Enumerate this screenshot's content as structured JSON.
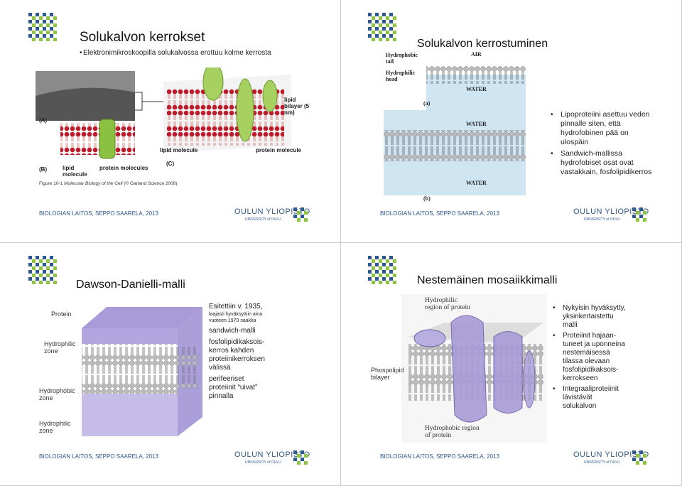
{
  "slides": [
    {
      "title": "Solukalvon kerrokset",
      "bullets": [
        "Elektronimikroskoopilla solukalvossa erottuu kolme kerrosta"
      ],
      "figure_labels": {
        "a": "(A)",
        "b": "(B)",
        "c": "(C)",
        "lipid_b": "lipid molecule",
        "proteins_b": "protein molecules",
        "lipid_c": "lipid molecule",
        "protein_c": "protein molecule",
        "bilayer": "lipid bilayer (5 nm)"
      },
      "caption": {
        "prefix": "Figure 10-1",
        "book": "Molecular Biology of the Cell",
        "source": "(© Garland Science 2008)"
      },
      "footer": "BIOLOGIAN LAITOS, SEPPO SAARELA, 2013",
      "logo": {
        "name": "OULUN YLIOPISTO",
        "sub": "UNIVERSITY of OULU"
      }
    },
    {
      "title": "Solukalvon kerrostuminen",
      "bullets": [
        "Lipoproteiini asettuu veden pinnalle siten, että hydrofobinen pää on ulospäin",
        "Sandwich-mallissa hydrofobiset osat ovat vastakkain, fosfolipidikerros"
      ],
      "figure_labels": {
        "tail": "Hydrophobic tail",
        "air": "AIR",
        "head": "Hydrophilic head",
        "water_a": "WATER",
        "a": "(a)",
        "water_b1": "WATER",
        "water_b2": "WATER",
        "b": "(b)"
      },
      "footer": "BIOLOGIAN LAITOS, SEPPO SAARELA, 2013",
      "logo": {
        "name": "OULUN YLIOPISTO",
        "sub": "UNIVERSITY of OULU"
      }
    },
    {
      "title": "Dawson-Danielli-malli",
      "figure_labels": [
        "Protein",
        "Hydrophilic zone",
        "Hydrophobic zone",
        "Hydrophilic zone"
      ],
      "notes": {
        "lead": "Esitettiin v. 1935,",
        "small": "laajasti hyväksyttiin aina vuoteen 1970 saakka",
        "items": [
          "sandwich-malli",
          "fosfolipidikaksois-kerros kahden proteiinikerroksen välissä",
          "perifeeriset proteiinit “uivat” pinnalla"
        ]
      },
      "footer": "BIOLOGIAN LAITOS, SEPPO SAARELA, 2013",
      "logo": {
        "name": "OULUN YLIOPISTO",
        "sub": "UNIVERSITY of OULU"
      }
    },
    {
      "title": "Nestemäinen mosaiikkimalli",
      "figure_labels": {
        "top": "Hydrophilic region of protein",
        "side": "Phospolipid bilayer",
        "bottom": "Hydrophobic region of protein"
      },
      "bullets": [
        "Nykyisin hyväksytty, yksinkertaistettu malli",
        "Proteiinit hajaan-tuneet ja uponneina nestemäisessä tilassa olevaan fosfolipidikaksois-kerrokseen",
        "Integraaliproteiinit lävistävät solukalvon"
      ],
      "footer": "BIOLOGIAN LAITOS, SEPPO SAARELA, 2013",
      "logo": {
        "name": "OULUN YLIOPISTO",
        "sub": "UNIVERSITY of OULU"
      }
    }
  ]
}
